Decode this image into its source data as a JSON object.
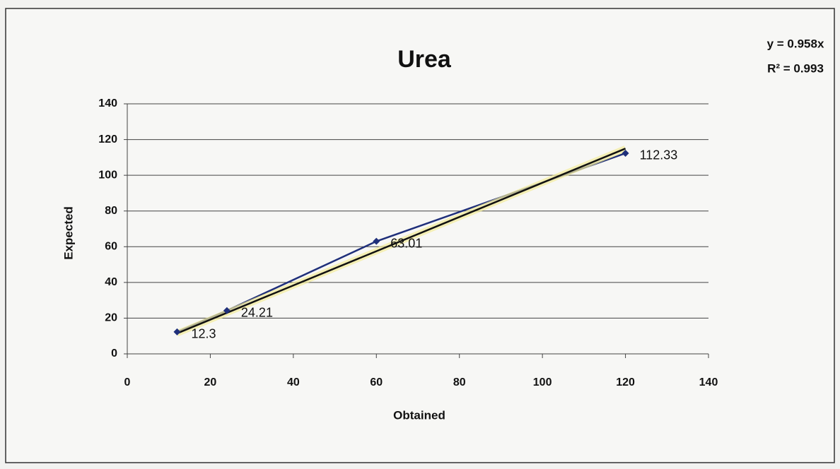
{
  "chart_data": {
    "type": "scatter",
    "title": "Urea",
    "x_label": "Obtained",
    "y_label": "Expected",
    "equation": "y = 0.958x",
    "r_squared": "R² = 0.993",
    "trendline": {
      "slope": 0.958,
      "label": "y = 0.958x"
    },
    "x": [
      12,
      24,
      60,
      120
    ],
    "values": [
      12.3,
      24.21,
      63.01,
      112.33
    ],
    "color": "#1f2f7a",
    "xlim": [
      0,
      140
    ],
    "xticks": [
      0,
      20,
      40,
      60,
      80,
      100,
      120,
      140
    ],
    "ylim": [
      0,
      140
    ],
    "yticks": [
      0,
      20,
      40,
      60,
      80,
      100,
      120,
      140
    ],
    "grid": true
  }
}
